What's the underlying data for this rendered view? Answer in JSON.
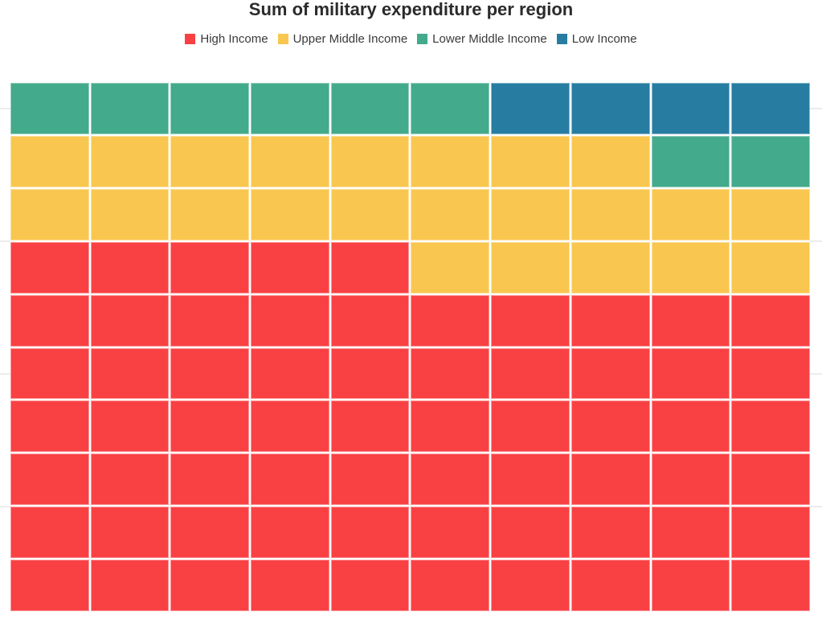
{
  "chart_data": {
    "type": "waffle",
    "title": "Sum of military expenditure per region",
    "legend_position": "top",
    "grid": {
      "rows": 10,
      "cols": 10,
      "total_cells": 100
    },
    "series": [
      {
        "name": "High Income",
        "color": "#f94144",
        "cells": 65
      },
      {
        "name": "Upper Middle Income",
        "color": "#f9c74f",
        "cells": 23
      },
      {
        "name": "Lower Middle Income",
        "color": "#43aa8b",
        "cells": 8
      },
      {
        "name": "Low Income",
        "color": "#277da1",
        "cells": 4
      }
    ],
    "matrix_order": "rows top to bottom, values are series indices",
    "matrix": [
      [
        2,
        2,
        2,
        2,
        2,
        2,
        3,
        3,
        3,
        3
      ],
      [
        1,
        1,
        1,
        1,
        1,
        1,
        1,
        1,
        2,
        2
      ],
      [
        1,
        1,
        1,
        1,
        1,
        1,
        1,
        1,
        1,
        1
      ],
      [
        0,
        0,
        0,
        0,
        0,
        1,
        1,
        1,
        1,
        1
      ],
      [
        0,
        0,
        0,
        0,
        0,
        0,
        0,
        0,
        0,
        0
      ],
      [
        0,
        0,
        0,
        0,
        0,
        0,
        0,
        0,
        0,
        0
      ],
      [
        0,
        0,
        0,
        0,
        0,
        0,
        0,
        0,
        0,
        0
      ],
      [
        0,
        0,
        0,
        0,
        0,
        0,
        0,
        0,
        0,
        0
      ],
      [
        0,
        0,
        0,
        0,
        0,
        0,
        0,
        0,
        0,
        0
      ],
      [
        0,
        0,
        0,
        0,
        0,
        0,
        0,
        0,
        0,
        0
      ]
    ]
  }
}
